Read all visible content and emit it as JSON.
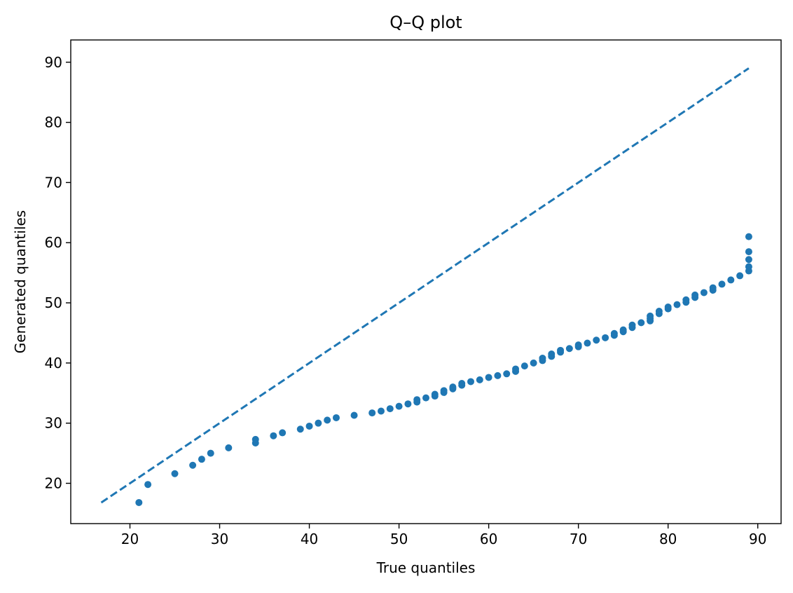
{
  "chart_data": {
    "type": "scatter",
    "title": "Q–Q plot",
    "xlabel": "True quantiles",
    "ylabel": "Generated quantiles",
    "xlim": [
      13.4,
      92.6
    ],
    "ylim": [
      13.3,
      93.7
    ],
    "xticks": [
      20,
      30,
      40,
      50,
      60,
      70,
      80,
      90
    ],
    "yticks": [
      20,
      30,
      40,
      50,
      60,
      70,
      80,
      90
    ],
    "xtick_labels": [
      "20",
      "30",
      "40",
      "50",
      "60",
      "70",
      "80",
      "90"
    ],
    "ytick_labels": [
      "20",
      "30",
      "40",
      "50",
      "60",
      "70",
      "80",
      "90"
    ],
    "grid": false,
    "colors": {
      "points": "#1f77b4",
      "reference_line": "#1f77b4"
    },
    "reference_line": {
      "style": "dashed",
      "x": [
        16.8,
        89.0
      ],
      "y": [
        16.8,
        89.0
      ]
    },
    "series": [
      {
        "marker": "circle",
        "x": [
          21,
          22,
          25,
          27,
          28,
          29,
          31,
          34,
          34,
          36,
          37,
          39,
          40,
          41,
          42,
          43,
          45,
          47,
          48,
          49,
          50,
          51,
          52,
          52,
          53,
          54,
          54,
          55,
          55,
          56,
          56,
          57,
          57,
          58,
          59,
          60,
          61,
          62,
          63,
          63,
          64,
          65,
          66,
          66,
          67,
          67,
          68,
          68,
          69,
          70,
          70,
          71,
          72,
          73,
          74,
          74,
          75,
          75,
          76,
          76,
          77,
          78,
          78,
          78,
          79,
          79,
          80,
          80,
          81,
          82,
          82,
          83,
          83,
          84,
          85,
          85,
          86,
          87,
          88,
          89,
          89,
          89,
          89,
          89
        ],
        "y": [
          16.8,
          19.8,
          21.6,
          23.0,
          24.0,
          25.0,
          25.9,
          26.7,
          27.3,
          27.9,
          28.4,
          29.0,
          29.5,
          30.0,
          30.5,
          30.9,
          31.3,
          31.7,
          32.0,
          32.4,
          32.8,
          33.2,
          33.5,
          33.9,
          34.2,
          34.5,
          34.8,
          35.1,
          35.4,
          35.7,
          36.0,
          36.3,
          36.6,
          36.9,
          37.2,
          37.6,
          37.9,
          38.2,
          38.6,
          39.0,
          39.5,
          40.0,
          40.4,
          40.8,
          41.1,
          41.5,
          41.8,
          42.1,
          42.4,
          42.7,
          43.0,
          43.3,
          43.8,
          44.2,
          44.6,
          44.9,
          45.2,
          45.5,
          45.9,
          46.3,
          46.7,
          47.0,
          47.4,
          47.8,
          48.2,
          48.6,
          49.0,
          49.3,
          49.7,
          50.1,
          50.5,
          50.9,
          51.3,
          51.7,
          52.1,
          52.5,
          53.1,
          53.8,
          54.5,
          55.3,
          56.0,
          57.2,
          58.5,
          61.0
        ]
      }
    ]
  }
}
